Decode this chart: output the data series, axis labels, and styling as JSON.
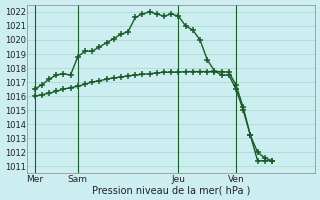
{
  "background_color": "#cceef0",
  "grid_color": "#aaddcc",
  "line_color": "#1a5c28",
  "title": "Pression niveau de la mer( hPa )",
  "ylim": [
    1010.5,
    1022.5
  ],
  "yticks": [
    1011,
    1012,
    1013,
    1014,
    1015,
    1016,
    1017,
    1018,
    1019,
    1020,
    1021,
    1022
  ],
  "day_labels": [
    "Mer",
    "Sam",
    "Jeu",
    "Ven"
  ],
  "day_positions": [
    0.5,
    3.5,
    10.5,
    14.5
  ],
  "xlim": [
    0,
    20
  ],
  "line1_x": [
    0.5,
    1.0,
    1.5,
    2.0,
    2.5,
    3.0,
    3.5,
    4.0,
    4.5,
    5.0,
    5.5,
    6.0,
    6.5,
    7.0,
    7.5,
    8.0,
    8.5,
    9.0,
    9.5,
    10.0,
    10.5,
    11.0,
    11.5,
    12.0,
    12.5,
    13.0,
    13.5,
    14.0,
    14.5,
    15.0,
    15.5,
    16.0,
    16.5,
    17.0
  ],
  "line1_y": [
    1016.5,
    1016.8,
    1017.2,
    1017.5,
    1017.6,
    1017.5,
    1018.8,
    1019.2,
    1019.2,
    1019.5,
    1019.8,
    1020.1,
    1020.4,
    1020.6,
    1021.6,
    1021.85,
    1022.0,
    1021.85,
    1021.7,
    1021.85,
    1021.7,
    1021.0,
    1020.7,
    1020.0,
    1018.6,
    1017.8,
    1017.5,
    1017.5,
    1016.5,
    1015.0,
    1013.2,
    1012.0,
    1011.6,
    1011.4
  ],
  "line2_x": [
    0.5,
    1.0,
    1.5,
    2.0,
    2.5,
    3.0,
    3.5,
    4.0,
    4.5,
    5.0,
    5.5,
    6.0,
    6.5,
    7.0,
    7.5,
    8.0,
    8.5,
    9.0,
    9.5,
    10.0,
    10.5,
    11.0,
    11.5,
    12.0,
    12.5,
    13.0,
    13.5,
    14.0,
    14.5,
    15.0,
    15.5,
    16.0,
    16.5,
    17.0
  ],
  "line2_y": [
    1016.0,
    1016.1,
    1016.2,
    1016.35,
    1016.5,
    1016.6,
    1016.7,
    1016.85,
    1017.0,
    1017.1,
    1017.2,
    1017.3,
    1017.35,
    1017.45,
    1017.5,
    1017.55,
    1017.6,
    1017.65,
    1017.7,
    1017.7,
    1017.7,
    1017.75,
    1017.75,
    1017.75,
    1017.75,
    1017.75,
    1017.75,
    1017.7,
    1016.8,
    1015.2,
    1013.2,
    1011.4,
    1011.4,
    1011.4
  ],
  "marker_size": 4,
  "line_width": 1.0
}
